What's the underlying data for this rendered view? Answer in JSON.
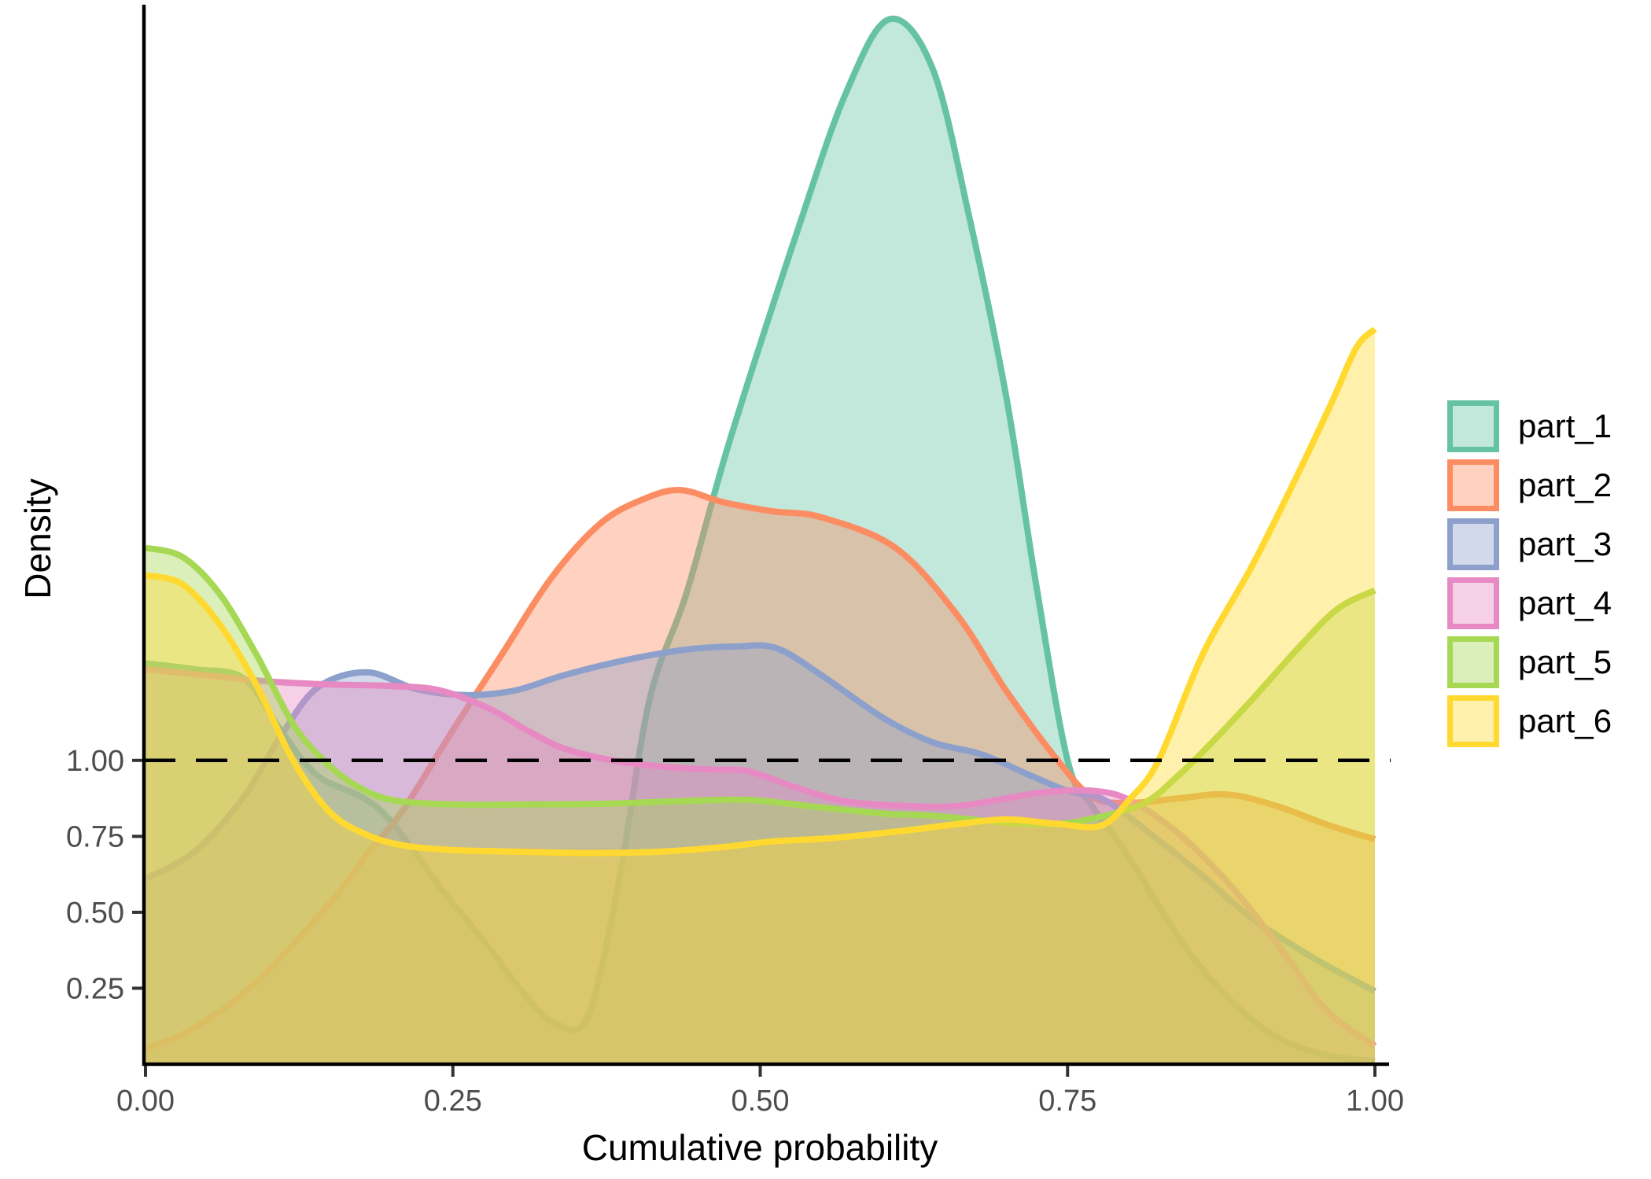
{
  "chart_data": {
    "type": "area",
    "subtype": "overlapping-density-curves",
    "title": "",
    "xlabel": "Cumulative probability",
    "ylabel": "Density",
    "xlim": [
      0,
      1
    ],
    "ylim": [
      0,
      3.48
    ],
    "grid": false,
    "legend_position": "right",
    "fill_alpha": 0.4,
    "axis_text_color": "#4d4d4d",
    "axis_line_color": "#000000",
    "x_ticks": {
      "values": [
        0,
        0.25,
        0.5,
        0.75,
        1.0
      ],
      "labels": [
        "0.00",
        "0.25",
        "0.50",
        "0.75",
        "1.00"
      ]
    },
    "y_ticks": {
      "values": [
        0.25,
        0.5,
        0.75,
        1.0
      ],
      "labels": [
        "0.25",
        "0.50",
        "0.75",
        "1.00"
      ]
    },
    "reference_line": {
      "y": 1.0,
      "style": "dashed",
      "color": "#000000"
    },
    "series": [
      {
        "name": "part_1",
        "color": "#66C2A5",
        "points": [
          [
            0,
            1.32
          ],
          [
            0.04,
            1.3
          ],
          [
            0.08,
            1.27
          ],
          [
            0.11,
            1.1
          ],
          [
            0.14,
            0.95
          ],
          [
            0.19,
            0.84
          ],
          [
            0.24,
            0.58
          ],
          [
            0.28,
            0.38
          ],
          [
            0.31,
            0.22
          ],
          [
            0.335,
            0.13
          ],
          [
            0.36,
            0.16
          ],
          [
            0.385,
            0.6
          ],
          [
            0.41,
            1.2
          ],
          [
            0.44,
            1.55
          ],
          [
            0.475,
            2.05
          ],
          [
            0.53,
            2.74
          ],
          [
            0.57,
            3.2
          ],
          [
            0.605,
            3.44
          ],
          [
            0.64,
            3.28
          ],
          [
            0.67,
            2.79
          ],
          [
            0.7,
            2.2
          ],
          [
            0.724,
            1.59
          ],
          [
            0.75,
            1.0
          ],
          [
            0.77,
            0.85
          ],
          [
            0.8,
            0.68
          ],
          [
            0.84,
            0.42
          ],
          [
            0.88,
            0.22
          ],
          [
            0.92,
            0.09
          ],
          [
            0.96,
            0.03
          ],
          [
            1,
            0.01
          ]
        ]
      },
      {
        "name": "part_2",
        "color": "#FC8D62",
        "points": [
          [
            0,
            0.05
          ],
          [
            0.04,
            0.12
          ],
          [
            0.09,
            0.27
          ],
          [
            0.15,
            0.53
          ],
          [
            0.18,
            0.69
          ],
          [
            0.21,
            0.84
          ],
          [
            0.25,
            1.1
          ],
          [
            0.29,
            1.35
          ],
          [
            0.33,
            1.6
          ],
          [
            0.37,
            1.78
          ],
          [
            0.405,
            1.86
          ],
          [
            0.435,
            1.89
          ],
          [
            0.47,
            1.85
          ],
          [
            0.51,
            1.82
          ],
          [
            0.55,
            1.8
          ],
          [
            0.61,
            1.7
          ],
          [
            0.66,
            1.48
          ],
          [
            0.7,
            1.23
          ],
          [
            0.742,
            1.0
          ],
          [
            0.77,
            0.88
          ],
          [
            0.8,
            0.86
          ],
          [
            0.84,
            0.875
          ],
          [
            0.88,
            0.888
          ],
          [
            0.92,
            0.85
          ],
          [
            0.96,
            0.79
          ],
          [
            1,
            0.74
          ]
        ]
      },
      {
        "name": "part_3",
        "color": "#8DA0CB",
        "points": [
          [
            0,
            0.61
          ],
          [
            0.04,
            0.7
          ],
          [
            0.08,
            0.88
          ],
          [
            0.11,
            1.08
          ],
          [
            0.14,
            1.24
          ],
          [
            0.18,
            1.29
          ],
          [
            0.22,
            1.235
          ],
          [
            0.26,
            1.215
          ],
          [
            0.3,
            1.23
          ],
          [
            0.34,
            1.28
          ],
          [
            0.39,
            1.33
          ],
          [
            0.44,
            1.365
          ],
          [
            0.48,
            1.375
          ],
          [
            0.513,
            1.37
          ],
          [
            0.55,
            1.28
          ],
          [
            0.6,
            1.14
          ],
          [
            0.64,
            1.06
          ],
          [
            0.68,
            1.02
          ],
          [
            0.72,
            0.95
          ],
          [
            0.75,
            0.9
          ],
          [
            0.78,
            0.87
          ],
          [
            0.82,
            0.75
          ],
          [
            0.86,
            0.62
          ],
          [
            0.9,
            0.48
          ],
          [
            0.95,
            0.35
          ],
          [
            1,
            0.24
          ]
        ]
      },
      {
        "name": "part_4",
        "color": "#E78AC3",
        "points": [
          [
            0,
            1.3
          ],
          [
            0.05,
            1.28
          ],
          [
            0.1,
            1.26
          ],
          [
            0.15,
            1.25
          ],
          [
            0.2,
            1.245
          ],
          [
            0.24,
            1.23
          ],
          [
            0.28,
            1.17
          ],
          [
            0.31,
            1.1
          ],
          [
            0.34,
            1.04
          ],
          [
            0.38,
            1.0
          ],
          [
            0.42,
            0.98
          ],
          [
            0.46,
            0.97
          ],
          [
            0.49,
            0.965
          ],
          [
            0.53,
            0.91
          ],
          [
            0.57,
            0.865
          ],
          [
            0.62,
            0.85
          ],
          [
            0.66,
            0.85
          ],
          [
            0.7,
            0.875
          ],
          [
            0.73,
            0.895
          ],
          [
            0.77,
            0.9
          ],
          [
            0.8,
            0.87
          ],
          [
            0.84,
            0.76
          ],
          [
            0.88,
            0.6
          ],
          [
            0.92,
            0.4
          ],
          [
            0.96,
            0.18
          ],
          [
            1,
            0.06
          ]
        ]
      },
      {
        "name": "part_5",
        "color": "#A6D854",
        "points": [
          [
            0,
            1.7
          ],
          [
            0.03,
            1.67
          ],
          [
            0.06,
            1.55
          ],
          [
            0.09,
            1.35
          ],
          [
            0.12,
            1.12
          ],
          [
            0.145,
            1.0
          ],
          [
            0.17,
            0.92
          ],
          [
            0.2,
            0.87
          ],
          [
            0.25,
            0.855
          ],
          [
            0.31,
            0.855
          ],
          [
            0.37,
            0.857
          ],
          [
            0.43,
            0.865
          ],
          [
            0.49,
            0.87
          ],
          [
            0.55,
            0.845
          ],
          [
            0.6,
            0.825
          ],
          [
            0.64,
            0.818
          ],
          [
            0.7,
            0.795
          ],
          [
            0.73,
            0.79
          ],
          [
            0.76,
            0.8
          ],
          [
            0.81,
            0.855
          ],
          [
            0.84,
            0.95
          ],
          [
            0.87,
            1.07
          ],
          [
            0.9,
            1.2
          ],
          [
            0.94,
            1.38
          ],
          [
            0.97,
            1.5
          ],
          [
            1,
            1.56
          ]
        ]
      },
      {
        "name": "part_6",
        "color": "#FFD92F",
        "points": [
          [
            0,
            1.61
          ],
          [
            0.03,
            1.58
          ],
          [
            0.06,
            1.45
          ],
          [
            0.09,
            1.25
          ],
          [
            0.12,
            1.0
          ],
          [
            0.15,
            0.83
          ],
          [
            0.18,
            0.755
          ],
          [
            0.21,
            0.72
          ],
          [
            0.25,
            0.705
          ],
          [
            0.3,
            0.7
          ],
          [
            0.36,
            0.695
          ],
          [
            0.42,
            0.7
          ],
          [
            0.47,
            0.715
          ],
          [
            0.51,
            0.733
          ],
          [
            0.56,
            0.745
          ],
          [
            0.62,
            0.77
          ],
          [
            0.66,
            0.79
          ],
          [
            0.7,
            0.806
          ],
          [
            0.74,
            0.792
          ],
          [
            0.777,
            0.785
          ],
          [
            0.8,
            0.87
          ],
          [
            0.824,
            1.0
          ],
          [
            0.86,
            1.35
          ],
          [
            0.9,
            1.64
          ],
          [
            0.937,
            1.94
          ],
          [
            0.965,
            2.18
          ],
          [
            0.985,
            2.36
          ],
          [
            1,
            2.42
          ]
        ]
      }
    ]
  },
  "legend": {
    "items": [
      {
        "label": "part_1",
        "color": "#66C2A5"
      },
      {
        "label": "part_2",
        "color": "#FC8D62"
      },
      {
        "label": "part_3",
        "color": "#8DA0CB"
      },
      {
        "label": "part_4",
        "color": "#E78AC3"
      },
      {
        "label": "part_5",
        "color": "#A6D854"
      },
      {
        "label": "part_6",
        "color": "#FFD92F"
      }
    ]
  }
}
